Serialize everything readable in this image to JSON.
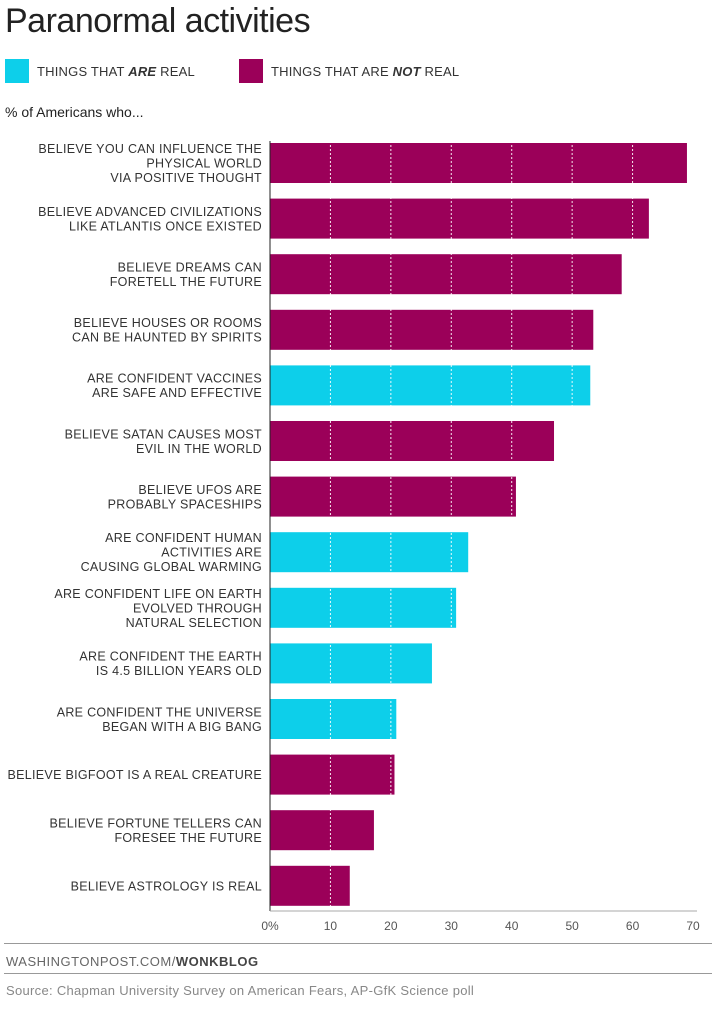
{
  "title": "Paranormal activities",
  "legend": {
    "real": {
      "prefix": "THINGS THAT ",
      "emph": "ARE",
      "suffix": " REAL",
      "color": "#0dcfea"
    },
    "not_real": {
      "prefix": "THINGS THAT ARE ",
      "emph": "NOT",
      "suffix": " REAL",
      "color": "#9b0059"
    }
  },
  "subhead": "% of Americans who...",
  "credit": {
    "site": "WASHINGTONPOST.COM/",
    "blog": "WONKBLOG"
  },
  "source": "Source: Chapman University Survey on American Fears, AP-GfK Science poll",
  "chart_data": {
    "type": "bar",
    "orientation": "horizontal",
    "xlim": [
      0,
      70
    ],
    "x_ticks": [
      "0%",
      "10",
      "20",
      "30",
      "40",
      "50",
      "60",
      "70"
    ],
    "grid": true,
    "legend_position": "top-left",
    "categories": [
      [
        "BELIEVE YOU CAN INFLUENCE THE",
        "PHYSICAL WORLD",
        "VIA POSITIVE THOUGHT"
      ],
      [
        "BELIEVE ADVANCED CIVILIZATIONS",
        "LIKE ATLANTIS ONCE EXISTED"
      ],
      [
        "BELIEVE DREAMS CAN",
        "FORETELL THE FUTURE"
      ],
      [
        "BELIEVE HOUSES OR ROOMS",
        "CAN BE HAUNTED BY SPIRITS"
      ],
      [
        "ARE CONFIDENT VACCINES",
        "ARE SAFE AND EFFECTIVE"
      ],
      [
        "BELIEVE SATAN CAUSES MOST",
        "EVIL IN THE WORLD"
      ],
      [
        "BELIEVE UFOS ARE",
        "PROBABLY SPACESHIPS"
      ],
      [
        "ARE CONFIDENT HUMAN",
        "ACTIVITIES ARE",
        "CAUSING GLOBAL WARMING"
      ],
      [
        "ARE CONFIDENT LIFE ON EARTH",
        "EVOLVED THROUGH",
        "NATURAL SELECTION"
      ],
      [
        "ARE CONFIDENT THE EARTH",
        "IS 4.5 BILLION YEARS OLD"
      ],
      [
        "ARE CONFIDENT THE UNIVERSE",
        "BEGAN WITH A BIG BANG"
      ],
      [
        "BELIEVE BIGFOOT IS A REAL CREATURE"
      ],
      [
        "BELIEVE FORTUNE TELLERS CAN",
        "FORESEE THE FUTURE"
      ],
      [
        "BELIEVE ASTROLOGY IS REAL"
      ]
    ],
    "values": [
      69,
      62.7,
      58.2,
      53.5,
      53,
      47,
      40.7,
      32.8,
      30.8,
      26.8,
      20.9,
      20.6,
      17.2,
      13.2
    ],
    "is_real": [
      false,
      false,
      false,
      false,
      true,
      false,
      false,
      true,
      true,
      true,
      true,
      false,
      false,
      false
    ]
  }
}
